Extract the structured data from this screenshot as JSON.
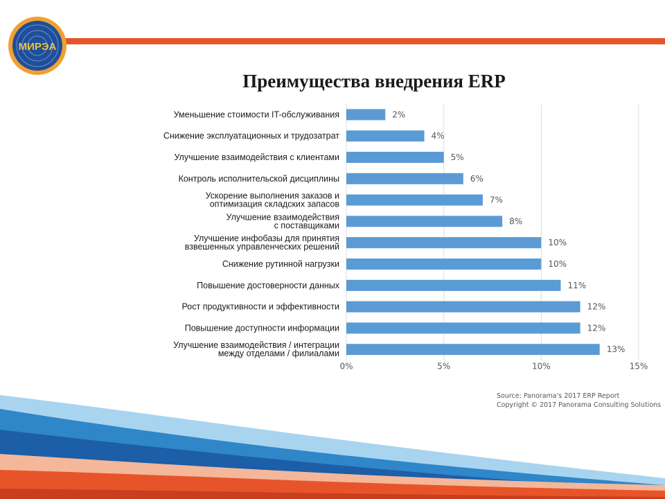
{
  "page": {
    "title": "Преимущества внедрения ERP",
    "logo_text": "МИРЭА",
    "source_line1": "Source: Panorama's 2017 ERP Report",
    "source_line2": "Copyright © 2017 Panorama Consulting Solutions"
  },
  "colors": {
    "bar": "#5b9bd5",
    "accent_orange": "#e8542a",
    "logo_blue": "#1f4e9a",
    "logo_orange": "#f0a030"
  },
  "chart_data": {
    "type": "bar",
    "orientation": "horizontal",
    "title": "Преимущества внедрения ERP",
    "categories": [
      [
        "Уменьшение стоимости IT-обслуживания"
      ],
      [
        "Снижение эксплуатационных и трудозатрат"
      ],
      [
        "Улучшение взаимодействия с клиентами"
      ],
      [
        "Контроль исполнительской дисциплины"
      ],
      [
        "Ускорение выполнения заказов и",
        "оптимизация складских запасов"
      ],
      [
        "Улучшение взаимодействия",
        "с поставщиками"
      ],
      [
        "Улучшение инфобазы для принятия",
        "взвешенных управленческих решений"
      ],
      [
        "Снижение рутинной нагрузки"
      ],
      [
        "Повышение достоверности данных"
      ],
      [
        "Рост продуктивности и эффективности"
      ],
      [
        "Повышение доступности информации"
      ],
      [
        "Улучшение взаимодействия / интеграции",
        "между отделами / филиалами"
      ]
    ],
    "values": [
      2,
      4,
      5,
      6,
      7,
      8,
      10,
      10,
      11,
      12,
      12,
      13
    ],
    "value_labels": [
      "2%",
      "4%",
      "5%",
      "6%",
      "7%",
      "8%",
      "10%",
      "10%",
      "11%",
      "12%",
      "12%",
      "13%"
    ],
    "xlim": [
      0,
      15
    ],
    "xticks": [
      0,
      5,
      10,
      15
    ],
    "xtick_labels": [
      "0%",
      "5%",
      "10%",
      "15%"
    ],
    "grid": true
  }
}
